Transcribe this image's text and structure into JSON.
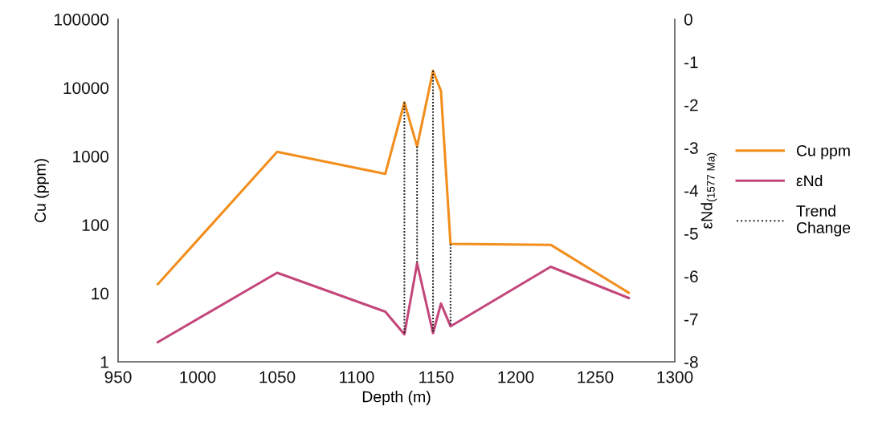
{
  "chart_data": {
    "type": "line",
    "xlabel": "Depth (m)",
    "ylabel": "Cu (ppm)",
    "y2label": "εNd$_{(1577 Ma)}$",
    "log": "y",
    "xlim": [
      950,
      1300
    ],
    "xticks": [
      950,
      1000,
      1050,
      1100,
      1150,
      1200,
      1250,
      1300
    ],
    "ylim": [
      1,
      100000
    ],
    "yticks": [
      1,
      10,
      100,
      1000,
      10000,
      100000
    ],
    "y2lim": [
      -8,
      0
    ],
    "y2ticks": [
      -8,
      -7,
      -6,
      -5,
      -4,
      -3,
      -2,
      -1,
      0
    ],
    "grid": false,
    "legend": "right",
    "marker": "none",
    "series": [
      {
        "name": "Cu ppm",
        "color": "#f28e1c",
        "line_style": "solid",
        "x": [
          975,
          1050,
          1118,
          1130,
          1138,
          1148,
          1153,
          1159,
          1222,
          1271
        ],
        "values": [
          13.6,
          1160,
          554,
          6100,
          1390,
          17700,
          9000,
          52.6,
          51,
          10.2
        ]
      },
      {
        "name": "εNd",
        "color": "#c4477c",
        "line_style": "solid",
        "axis": "y2",
        "x": [
          975,
          1050,
          1118,
          1130,
          1138,
          1148,
          1153,
          1159,
          1222,
          1271
        ],
        "values": [
          -7.54,
          -5.92,
          -6.83,
          -7.36,
          -5.7,
          -7.33,
          -6.64,
          -7.17,
          -5.78,
          -6.51
        ]
      },
      {
        "name": "Trend Change",
        "color": "#222222",
        "line_style": "dotted",
        "axis": "y2",
        "x": [
          1130,
          1130
        ],
        "values": [
          -1.94,
          -7.36
        ]
      },
      {
        "color": "#222222",
        "line_style": "dotted",
        "axis": "y2",
        "x": [
          1138,
          1138
        ],
        "values": [
          -2.97,
          -5.7
        ]
      },
      {
        "color": "#222222",
        "line_style": "dotted",
        "axis": "y2",
        "x": [
          1148,
          1148
        ],
        "values": [
          -1.2,
          -7.33
        ]
      },
      {
        "color": "#222222",
        "line_style": "dotted",
        "axis": "y2",
        "x": [
          1159,
          1159
        ],
        "values": [
          -5.25,
          -7.17
        ]
      }
    ]
  }
}
